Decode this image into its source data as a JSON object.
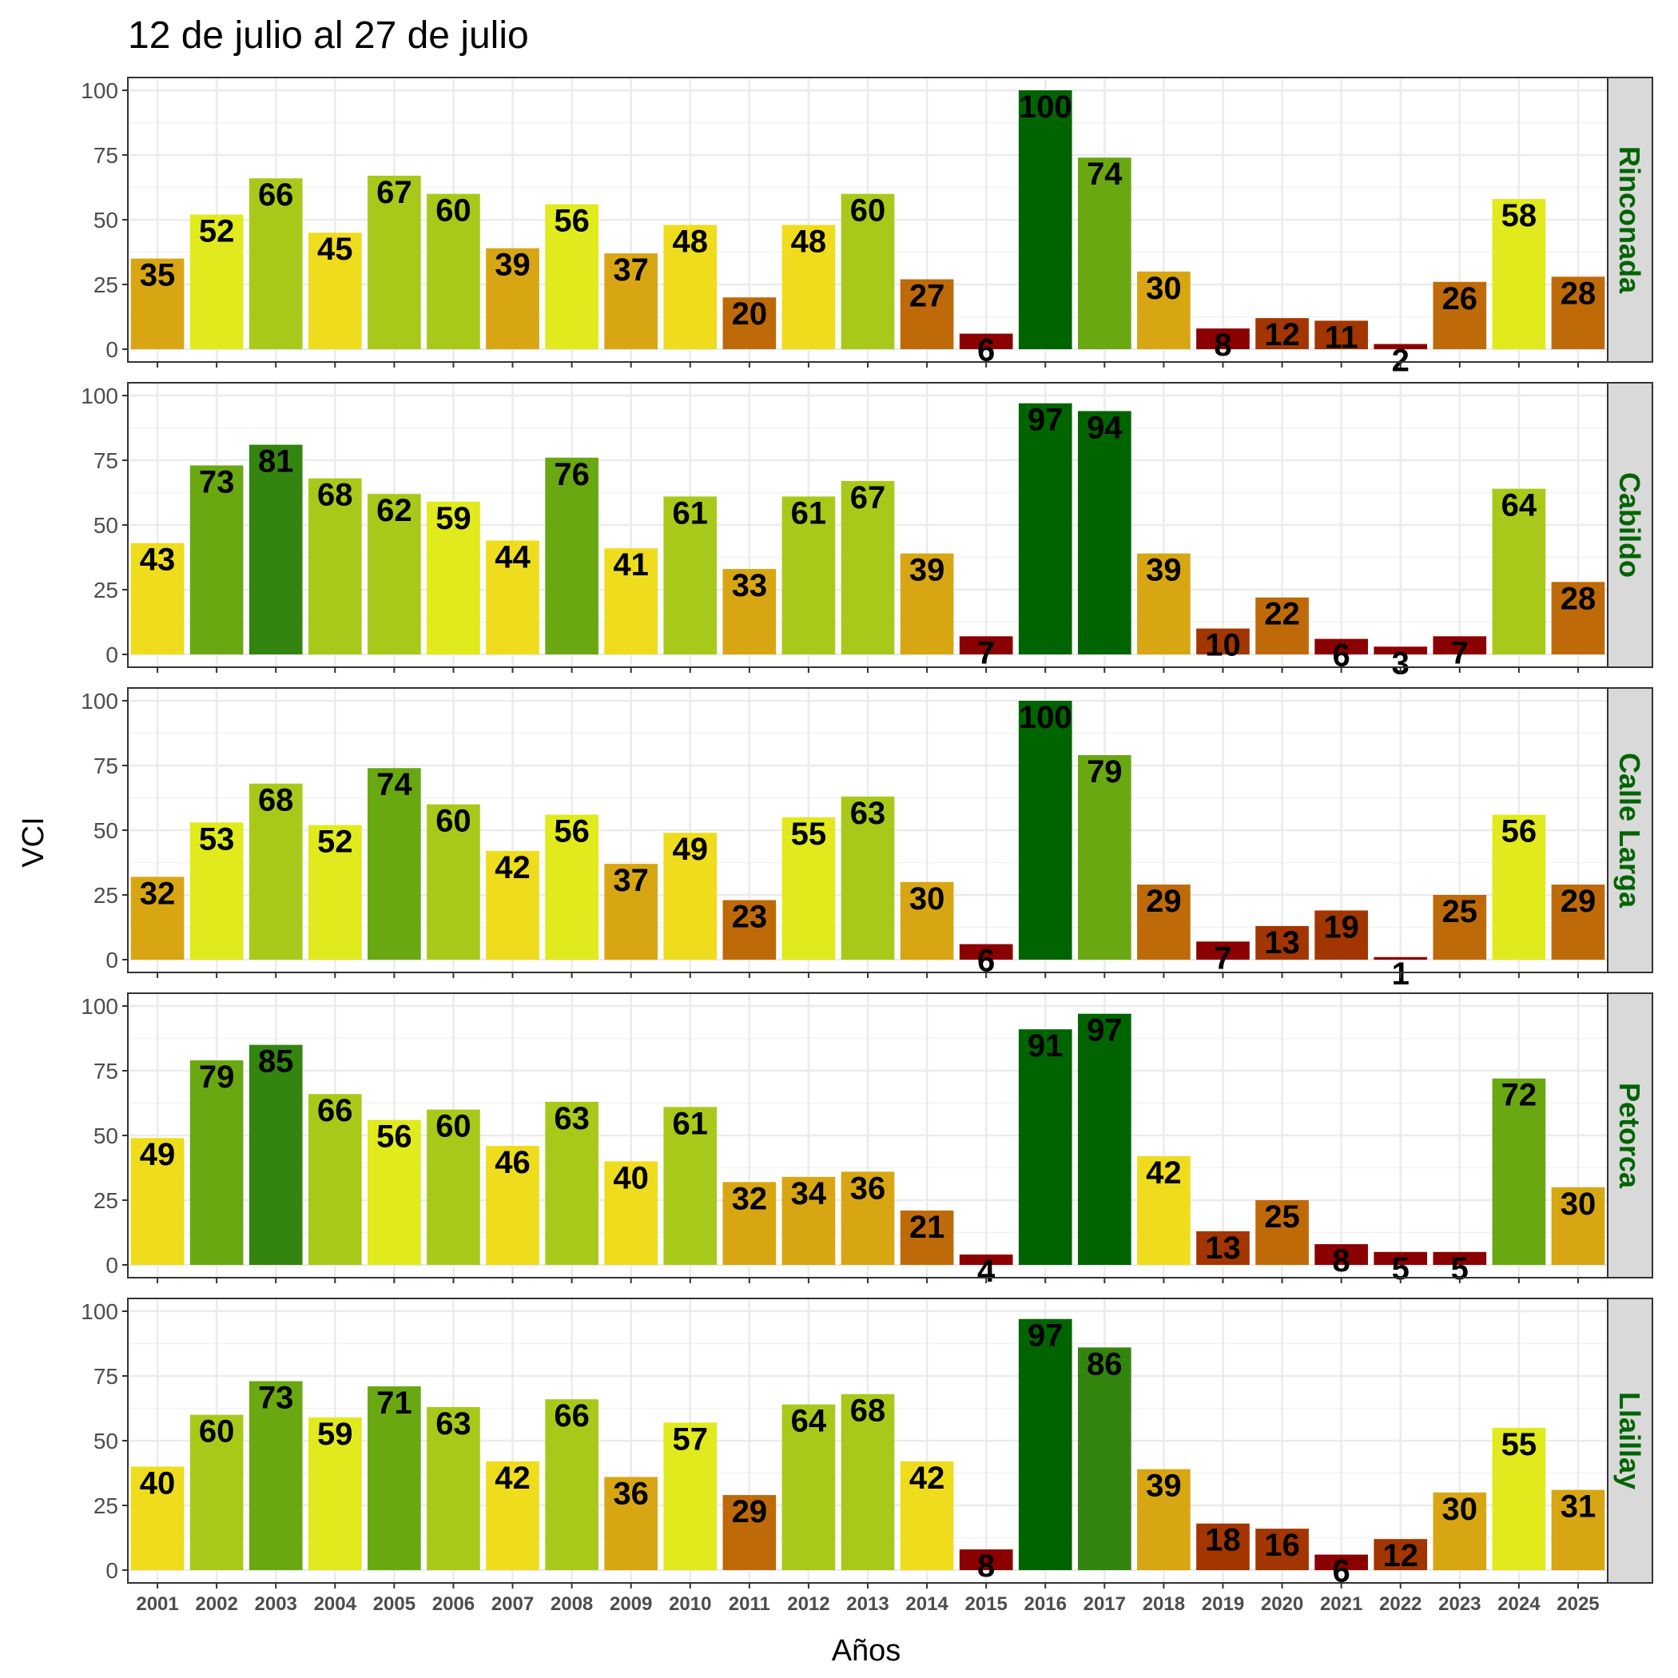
{
  "chart_data": {
    "type": "bar",
    "title": "12 de julio al 27 de julio",
    "xlabel": "Años",
    "ylabel": "VCI",
    "ylim": [
      0,
      100
    ],
    "yticks": [
      0,
      25,
      50,
      75,
      100
    ],
    "grid": true,
    "categories": [
      "2001",
      "2002",
      "2003",
      "2004",
      "2005",
      "2006",
      "2007",
      "2008",
      "2009",
      "2010",
      "2011",
      "2012",
      "2013",
      "2014",
      "2015",
      "2016",
      "2017",
      "2018",
      "2019",
      "2020",
      "2021",
      "2022",
      "2023",
      "2024",
      "2025"
    ],
    "color_scale": [
      {
        "min": 0,
        "max": 10,
        "color": "#8b0000"
      },
      {
        "min": 10,
        "max": 20,
        "color": "#a33600"
      },
      {
        "min": 20,
        "max": 30,
        "color": "#bf6a08"
      },
      {
        "min": 30,
        "max": 40,
        "color": "#d8a612"
      },
      {
        "min": 40,
        "max": 50,
        "color": "#efdc1c"
      },
      {
        "min": 50,
        "max": 60,
        "color": "#e0ea1c"
      },
      {
        "min": 60,
        "max": 70,
        "color": "#a9c91a"
      },
      {
        "min": 70,
        "max": 80,
        "color": "#6aa812"
      },
      {
        "min": 80,
        "max": 90,
        "color": "#338510"
      },
      {
        "min": 90,
        "max": 101,
        "color": "#006400"
      }
    ],
    "panels": [
      {
        "name": "Rinconada",
        "values": [
          35,
          52,
          66,
          45,
          67,
          60,
          39,
          56,
          37,
          48,
          20,
          48,
          60,
          27,
          6,
          100,
          74,
          30,
          8,
          12,
          11,
          2,
          26,
          58,
          28
        ]
      },
      {
        "name": "Cabildo",
        "values": [
          43,
          73,
          81,
          68,
          62,
          59,
          44,
          76,
          41,
          61,
          33,
          61,
          67,
          39,
          7,
          97,
          94,
          39,
          10,
          22,
          6,
          3,
          7,
          64,
          28
        ]
      },
      {
        "name": "Calle Larga",
        "values": [
          32,
          53,
          68,
          52,
          74,
          60,
          42,
          56,
          37,
          49,
          23,
          55,
          63,
          30,
          6,
          100,
          79,
          29,
          7,
          13,
          19,
          1,
          25,
          56,
          29
        ]
      },
      {
        "name": "Petorca",
        "values": [
          49,
          79,
          85,
          66,
          56,
          60,
          46,
          63,
          40,
          61,
          32,
          34,
          36,
          21,
          4,
          91,
          97,
          42,
          13,
          25,
          8,
          5,
          5,
          72,
          30
        ]
      },
      {
        "name": "Llaillay",
        "values": [
          40,
          60,
          73,
          59,
          71,
          63,
          42,
          66,
          36,
          57,
          29,
          64,
          68,
          42,
          8,
          97,
          86,
          39,
          18,
          16,
          6,
          12,
          30,
          55,
          31
        ]
      }
    ]
  }
}
